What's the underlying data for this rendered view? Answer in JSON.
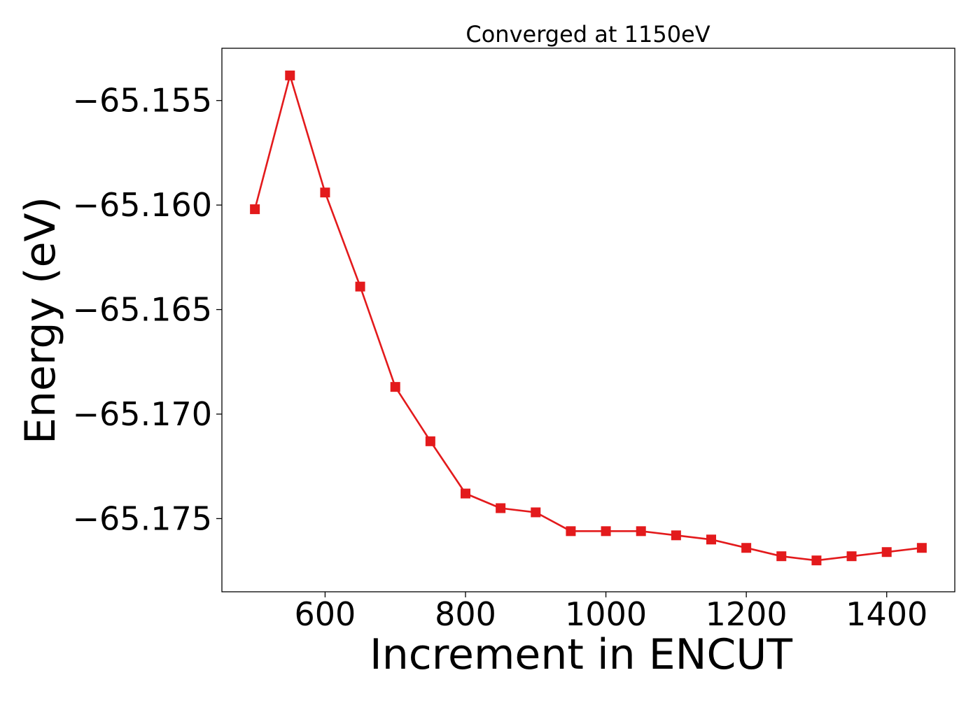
{
  "chart_data": {
    "type": "line",
    "title": "Converged at 1150eV",
    "xlabel": "Increment in ENCUT",
    "ylabel": "Energy (eV)",
    "xlim": [
      453,
      1497
    ],
    "ylim": [
      -65.1785,
      -65.1525
    ],
    "xticks": [
      600,
      800,
      1000,
      1200,
      1400
    ],
    "yticks": [
      -65.155,
      -65.16,
      -65.165,
      -65.17,
      -65.175
    ],
    "ytick_labels": [
      "−65.155",
      "−65.160",
      "−65.165",
      "−65.170",
      "−65.175"
    ],
    "grid": false,
    "marker": "square",
    "series": [
      {
        "color": "#e31a1c",
        "x": [
          500,
          550,
          600,
          650,
          700,
          750,
          800,
          850,
          900,
          950,
          1000,
          1050,
          1100,
          1150,
          1200,
          1250,
          1300,
          1350,
          1400,
          1450
        ],
        "y": [
          -65.1602,
          -65.1538,
          -65.1594,
          -65.1639,
          -65.1687,
          -65.1713,
          -65.1738,
          -65.1745,
          -65.1747,
          -65.1756,
          -65.1756,
          -65.1756,
          -65.1758,
          -65.176,
          -65.1764,
          -65.1768,
          -65.177,
          -65.1768,
          -65.1766,
          -65.1764
        ]
      }
    ]
  }
}
